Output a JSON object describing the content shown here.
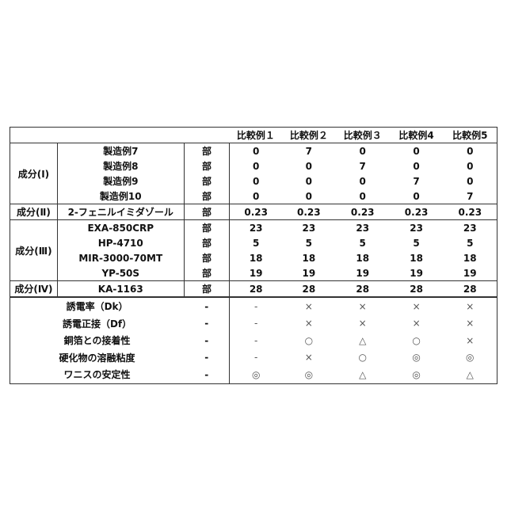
{
  "headers": [
    "",
    "",
    "",
    "比較例１",
    "比較例２",
    "比較例３",
    "比較例4",
    "比較例5"
  ],
  "groups": [
    {
      "label": "成分(Ⅰ)",
      "rows": [
        {
          "name": "製造例7",
          "unit": "部",
          "values": [
            "0",
            "7",
            "0",
            "0",
            "0"
          ]
        },
        {
          "name": "製造例8",
          "unit": "部",
          "values": [
            "0",
            "0",
            "7",
            "0",
            "0"
          ]
        },
        {
          "name": "製造例9",
          "unit": "部",
          "values": [
            "0",
            "0",
            "0",
            "7",
            "0"
          ]
        },
        {
          "name": "製造例10",
          "unit": "部",
          "values": [
            "0",
            "0",
            "0",
            "0",
            "7"
          ]
        }
      ]
    },
    {
      "label": "成分(Ⅱ)",
      "rows": [
        {
          "name": "2-フェニルイミダゾール",
          "unit": "部",
          "values": [
            "0.23",
            "0.23",
            "0.23",
            "0.23",
            "0.23"
          ]
        }
      ]
    },
    {
      "label": "成分(Ⅲ)",
      "rows": [
        {
          "name": "EXA-850CRP",
          "unit": "部",
          "values": [
            "23",
            "23",
            "23",
            "23",
            "23"
          ]
        },
        {
          "name": "HP-4710",
          "unit": "部",
          "values": [
            "5",
            "5",
            "5",
            "5",
            "5"
          ]
        },
        {
          "name": "MIR-3000-70MT",
          "unit": "部",
          "values": [
            "18",
            "18",
            "18",
            "18",
            "18"
          ]
        },
        {
          "name": "YP-50S",
          "unit": "部",
          "values": [
            "19",
            "19",
            "19",
            "19",
            "19"
          ]
        }
      ]
    },
    {
      "label": "成分(Ⅳ)",
      "rows": [
        {
          "name": "KA-1163",
          "unit": "部",
          "values": [
            "28",
            "28",
            "28",
            "28",
            "28"
          ]
        }
      ]
    }
  ],
  "evaluations": [
    {
      "name": "誘電率（Dk）",
      "unit": "-",
      "values": [
        "-",
        "×",
        "×",
        "×",
        "×"
      ]
    },
    {
      "name": "誘電正接（Df）",
      "unit": "-",
      "values": [
        "-",
        "×",
        "×",
        "×",
        "×"
      ]
    },
    {
      "name": "銅箔との接着性",
      "unit": "-",
      "values": [
        "-",
        "○",
        "△",
        "○",
        "×"
      ]
    },
    {
      "name": "硬化物の溶融粘度",
      "unit": "-",
      "values": [
        "-",
        "×",
        "○",
        "◎",
        "◎"
      ]
    },
    {
      "name": "ワニスの安定性",
      "unit": "-",
      "values": [
        "◎",
        "◎",
        "△",
        "◎",
        "△"
      ]
    }
  ]
}
